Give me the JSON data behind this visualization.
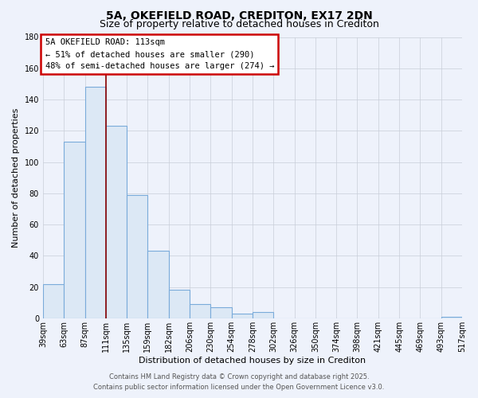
{
  "title": "5A, OKEFIELD ROAD, CREDITON, EX17 2DN",
  "subtitle": "Size of property relative to detached houses in Crediton",
  "xlabel": "Distribution of detached houses by size in Crediton",
  "ylabel": "Number of detached properties",
  "bar_values": [
    22,
    113,
    148,
    123,
    79,
    43,
    18,
    9,
    7,
    3,
    4,
    0,
    0,
    0,
    0,
    0,
    0,
    0,
    0,
    1
  ],
  "bar_labels": [
    "39sqm",
    "63sqm",
    "87sqm",
    "111sqm",
    "135sqm",
    "159sqm",
    "182sqm",
    "206sqm",
    "230sqm",
    "254sqm",
    "278sqm",
    "302sqm",
    "326sqm",
    "350sqm",
    "374sqm",
    "398sqm",
    "421sqm",
    "445sqm",
    "469sqm",
    "493sqm",
    "517sqm"
  ],
  "bar_color": "#dce8f5",
  "bar_edge_color": "#7aabda",
  "background_color": "#eef2fb",
  "plot_bg_color": "#eef2fb",
  "grid_color": "#c8cdd8",
  "ylim": [
    0,
    180
  ],
  "yticks": [
    0,
    20,
    40,
    60,
    80,
    100,
    120,
    140,
    160,
    180
  ],
  "annotation_title": "5A OKEFIELD ROAD: 113sqm",
  "annotation_line1": "← 51% of detached houses are smaller (290)",
  "annotation_line2": "48% of semi-detached houses are larger (274) →",
  "annotation_box_color": "#ffffff",
  "annotation_box_edge": "#cc0000",
  "property_line_color": "#8b0000",
  "property_bar_index": 3,
  "footer_line1": "Contains HM Land Registry data © Crown copyright and database right 2025.",
  "footer_line2": "Contains public sector information licensed under the Open Government Licence v3.0.",
  "title_fontsize": 10,
  "subtitle_fontsize": 9,
  "axis_label_fontsize": 8,
  "tick_fontsize": 7,
  "annotation_fontsize": 7.5,
  "footer_fontsize": 6
}
